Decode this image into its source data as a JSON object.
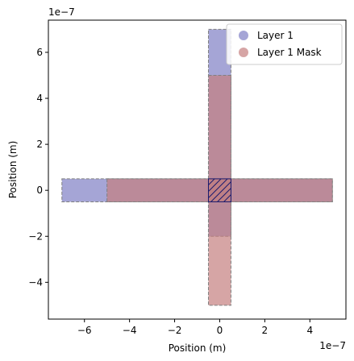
{
  "chart_data": {
    "type": "area",
    "title": "",
    "xlabel": "Position (m)",
    "ylabel": "Position (m)",
    "x_offset_label": "1e−7",
    "y_offset_label": "1e−7",
    "xlim": [
      -7.6,
      5.6
    ],
    "ylim": [
      -5.6,
      7.4
    ],
    "xticks": [
      -6,
      -4,
      -2,
      0,
      2,
      4
    ],
    "xtick_labels": [
      "−6",
      "−4",
      "−2",
      "0",
      "2",
      "4"
    ],
    "yticks": [
      -4,
      -2,
      0,
      2,
      4,
      6
    ],
    "ytick_labels": [
      "−4",
      "−2",
      "0",
      "2",
      "4",
      "6"
    ],
    "grid": false,
    "legend_position": "top-right",
    "series": [
      {
        "name": "Layer 1",
        "color": "#7f7fc4",
        "rects": [
          {
            "x0": -7,
            "x1": 5,
            "y0": -0.5,
            "y1": 0.5
          },
          {
            "x0": -0.5,
            "x1": 0.5,
            "y0": -2,
            "y1": 7
          }
        ]
      },
      {
        "name": "Layer 1 Mask",
        "color": "#c47f7f",
        "rects": [
          {
            "x0": -5,
            "x1": 5,
            "y0": -0.5,
            "y1": 0.5
          },
          {
            "x0": -0.5,
            "x1": 0.5,
            "y0": -5,
            "y1": 5
          }
        ]
      }
    ],
    "hatched_overlap": {
      "x0": -0.5,
      "x1": 0.5,
      "y0": -0.5,
      "y1": 0.5,
      "color": "#1a1a6e"
    }
  }
}
